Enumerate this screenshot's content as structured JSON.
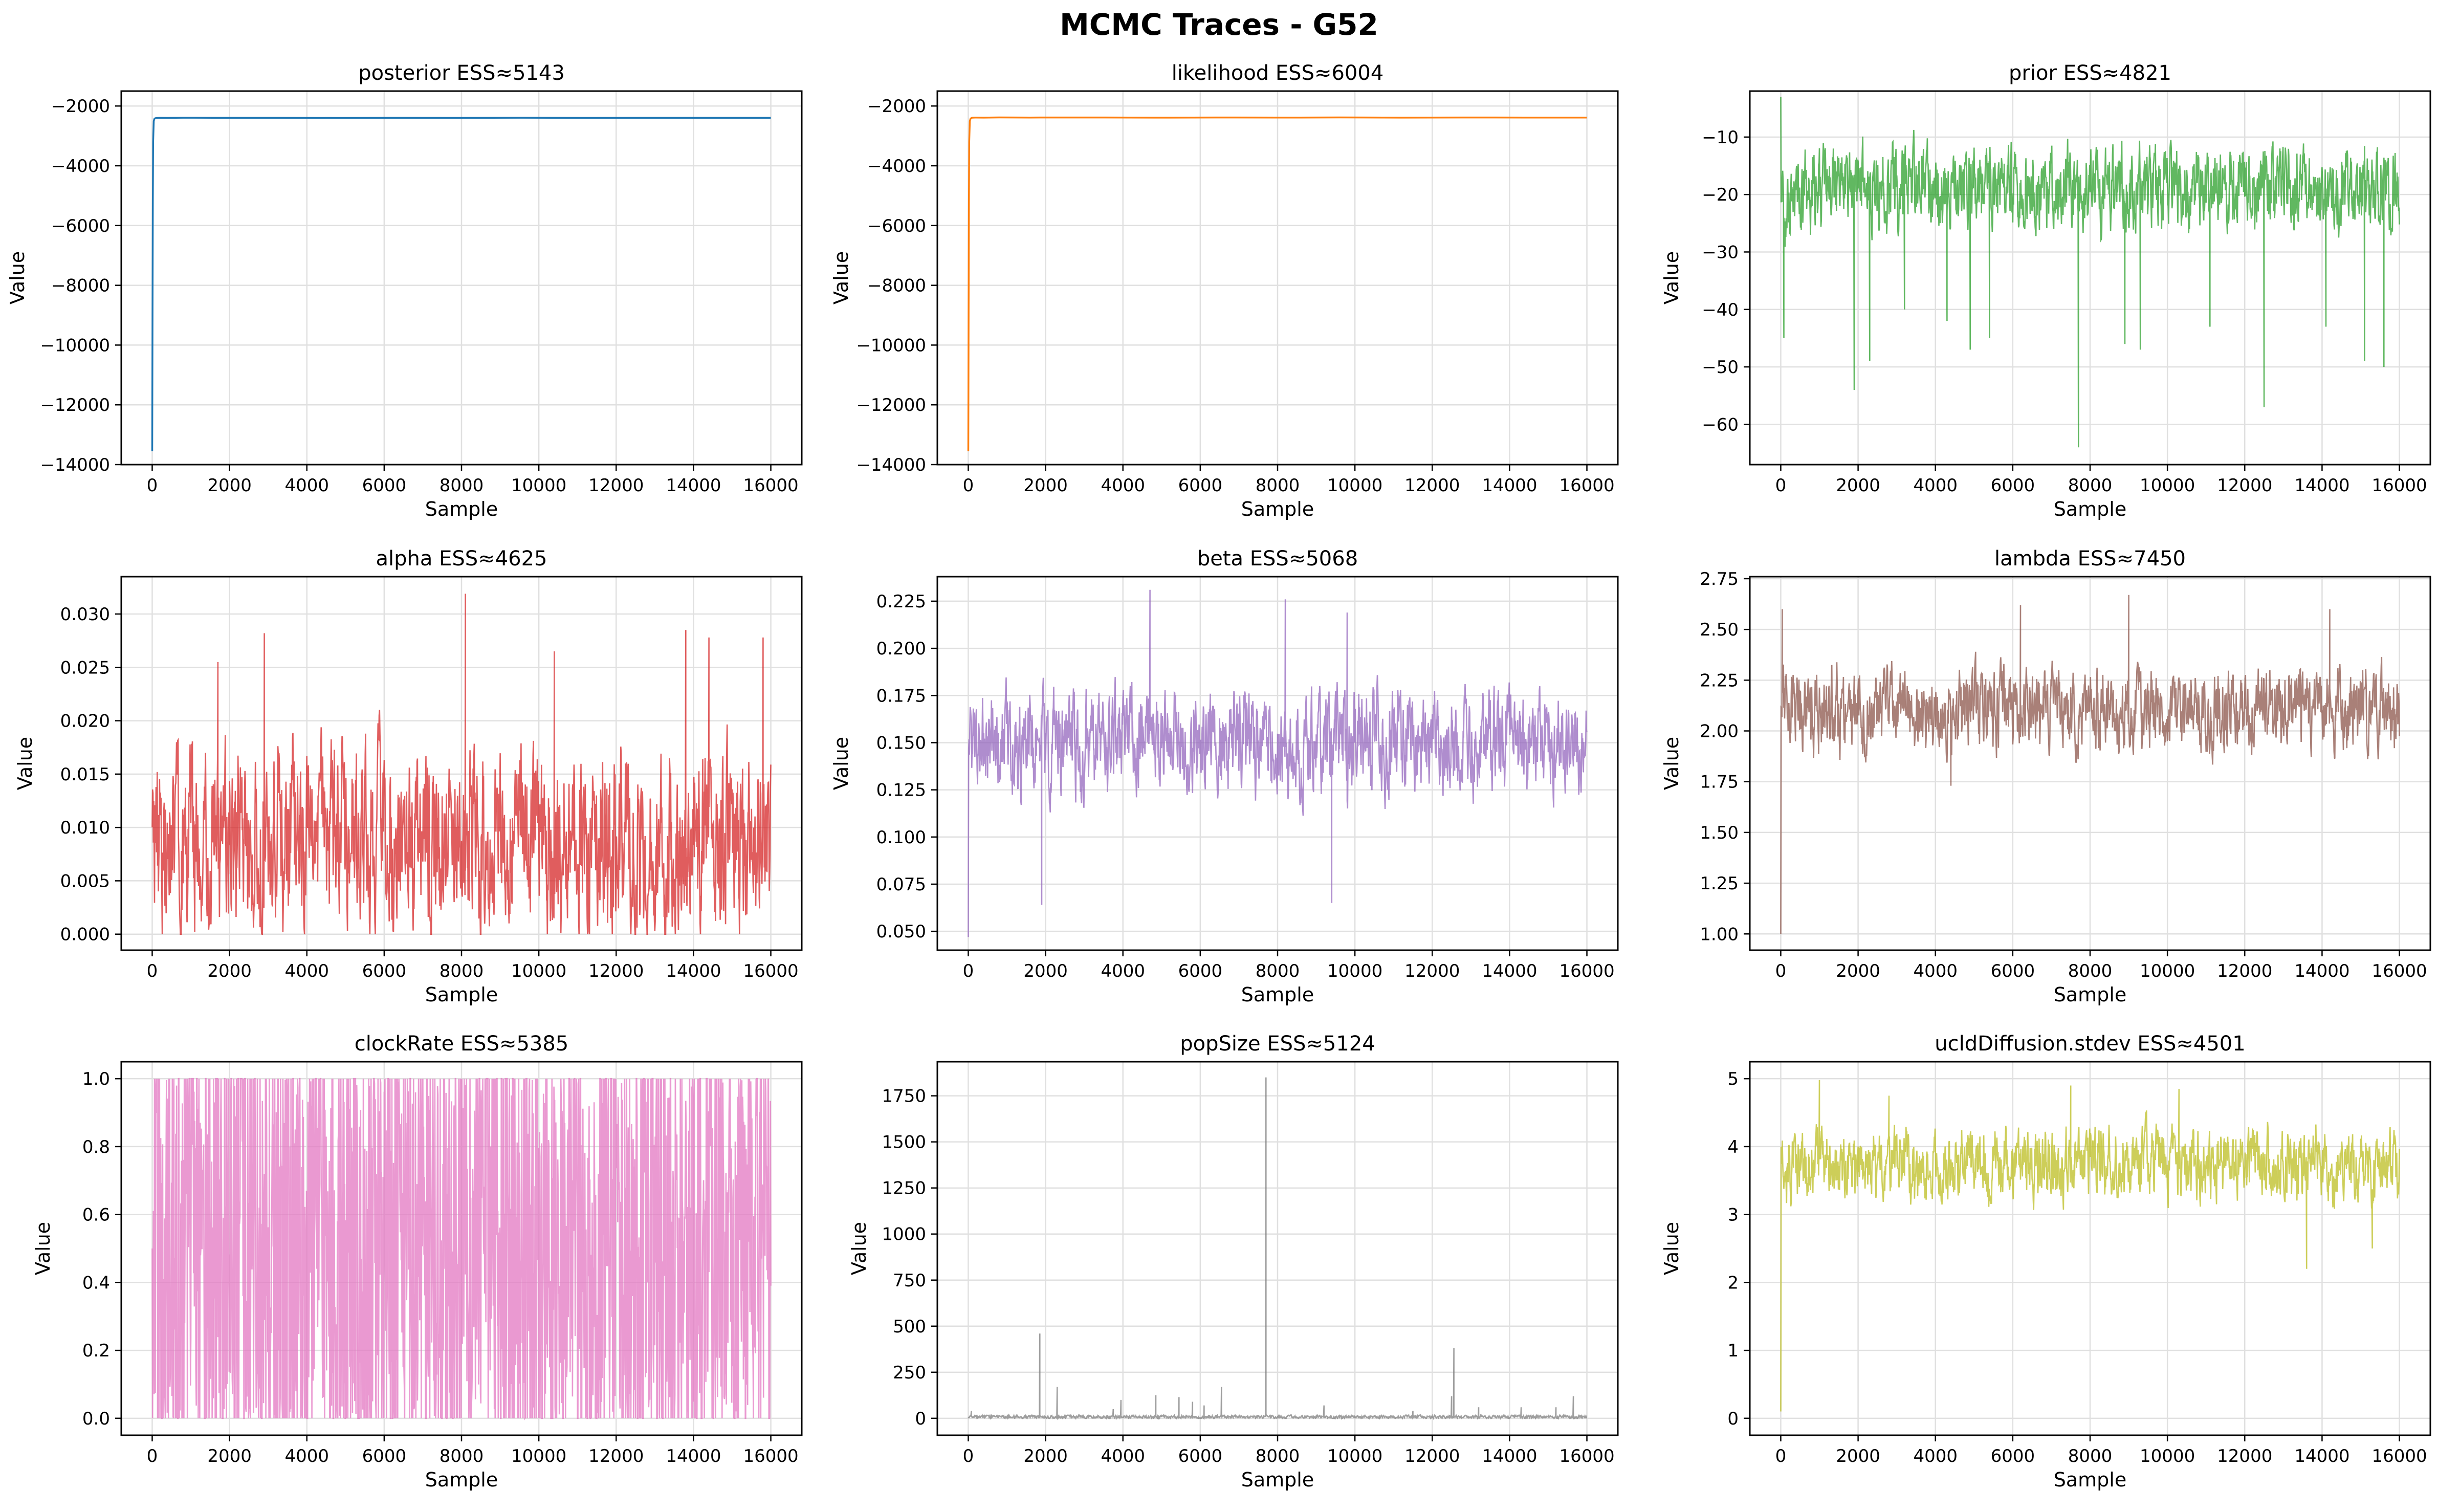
{
  "title": "MCMC Traces - G52",
  "chart_data": [
    {
      "type": "line",
      "title": "posterior ESS≈5143",
      "xlabel": "Sample",
      "ylabel": "Value",
      "color": "#1f77b4",
      "grid": true,
      "xlim": [
        -800,
        16800
      ],
      "ylim": [
        -14000,
        -1500
      ],
      "xticks": [
        0,
        2000,
        4000,
        6000,
        8000,
        10000,
        12000,
        14000,
        16000
      ],
      "yticks": [
        -14000,
        -12000,
        -10000,
        -8000,
        -6000,
        -4000,
        -2000
      ],
      "series": [
        {
          "x": [
            0,
            8,
            16,
            24,
            40,
            60,
            100,
            200,
            400,
            800,
            1600,
            3200,
            4800,
            6400,
            8000,
            9600,
            11200,
            12800,
            14400,
            16000
          ],
          "values": [
            -13550,
            -9000,
            -5200,
            -3200,
            -2500,
            -2420,
            -2400,
            -2395,
            -2398,
            -2392,
            -2396,
            -2394,
            -2399,
            -2393,
            -2397,
            -2392,
            -2398,
            -2394,
            -2396,
            -2395
          ]
        }
      ]
    },
    {
      "type": "line",
      "title": "likelihood ESS≈6004",
      "xlabel": "Sample",
      "ylabel": "Value",
      "color": "#ff7f0e",
      "grid": true,
      "xlim": [
        -800,
        16800
      ],
      "ylim": [
        -14000,
        -1500
      ],
      "xticks": [
        0,
        2000,
        4000,
        6000,
        8000,
        10000,
        12000,
        14000,
        16000
      ],
      "yticks": [
        -14000,
        -12000,
        -10000,
        -8000,
        -6000,
        -4000,
        -2000
      ],
      "series": [
        {
          "x": [
            0,
            8,
            16,
            24,
            40,
            60,
            100,
            200,
            400,
            800,
            1600,
            3200,
            4800,
            6400,
            8000,
            9600,
            11200,
            12800,
            14400,
            16000
          ],
          "values": [
            -13550,
            -9000,
            -5200,
            -3200,
            -2500,
            -2420,
            -2390,
            -2385,
            -2388,
            -2382,
            -2386,
            -2384,
            -2389,
            -2383,
            -2387,
            -2382,
            -2388,
            -2384,
            -2386,
            -2385
          ]
        }
      ]
    },
    {
      "type": "line",
      "title": "prior ESS≈4821",
      "xlabel": "Sample",
      "ylabel": "Value",
      "color": "#2ca02c",
      "grid": true,
      "xlim": [
        -800,
        16800
      ],
      "ylim": [
        -67,
        -2
      ],
      "xticks": [
        0,
        2000,
        4000,
        6000,
        8000,
        10000,
        12000,
        14000,
        16000
      ],
      "yticks": [
        -60,
        -50,
        -40,
        -30,
        -20,
        -10
      ],
      "trace": {
        "n": 1600,
        "seed": 3,
        "center": -19,
        "spread": 5.5,
        "min": -32,
        "max": -6,
        "low_tail": true,
        "start": -3
      },
      "spikes": [
        {
          "x": 80,
          "value": -45
        },
        {
          "x": 1900,
          "value": -54
        },
        {
          "x": 2300,
          "value": -49
        },
        {
          "x": 3200,
          "value": -40
        },
        {
          "x": 4300,
          "value": -42
        },
        {
          "x": 4900,
          "value": -47
        },
        {
          "x": 5400,
          "value": -45
        },
        {
          "x": 7700,
          "value": -64
        },
        {
          "x": 8900,
          "value": -46
        },
        {
          "x": 9300,
          "value": -47
        },
        {
          "x": 11100,
          "value": -43
        },
        {
          "x": 12500,
          "value": -57
        },
        {
          "x": 14100,
          "value": -43
        },
        {
          "x": 15100,
          "value": -49
        },
        {
          "x": 15600,
          "value": -50
        }
      ]
    },
    {
      "type": "line",
      "title": "alpha ESS≈4625",
      "xlabel": "Sample",
      "ylabel": "Value",
      "color": "#d62728",
      "grid": true,
      "xlim": [
        -800,
        16800
      ],
      "ylim": [
        -0.0015,
        0.0335
      ],
      "xticks": [
        0,
        2000,
        4000,
        6000,
        8000,
        10000,
        12000,
        14000,
        16000
      ],
      "yticks": [
        0,
        0.005,
        0.01,
        0.015,
        0.02,
        0.025,
        0.03
      ],
      "trace": {
        "n": 1600,
        "seed": 5,
        "center": 0.009,
        "spread": 0.0065,
        "min": 0,
        "max": 0.026,
        "low_tail": false,
        "start": 0.01
      },
      "spikes": [
        {
          "x": 1700,
          "value": 0.0255
        },
        {
          "x": 2900,
          "value": 0.0282
        },
        {
          "x": 8100,
          "value": 0.0319
        },
        {
          "x": 10400,
          "value": 0.0265
        },
        {
          "x": 13800,
          "value": 0.0285
        },
        {
          "x": 14400,
          "value": 0.0278
        },
        {
          "x": 15800,
          "value": 0.0278
        }
      ]
    },
    {
      "type": "line",
      "title": "beta ESS≈5068",
      "xlabel": "Sample",
      "ylabel": "Value",
      "color": "#9467bd",
      "grid": true,
      "xlim": [
        -800,
        16800
      ],
      "ylim": [
        0.04,
        0.238
      ],
      "xticks": [
        0,
        2000,
        4000,
        6000,
        8000,
        10000,
        12000,
        14000,
        16000
      ],
      "yticks": [
        0.05,
        0.075,
        0.1,
        0.125,
        0.15,
        0.175,
        0.2,
        0.225
      ],
      "trace": {
        "n": 1600,
        "seed": 7,
        "center": 0.15,
        "spread": 0.02,
        "min": 0.085,
        "max": 0.21,
        "low_tail": false,
        "start": 0.047
      },
      "spikes": [
        {
          "x": 1900,
          "value": 0.064
        },
        {
          "x": 4700,
          "value": 0.231
        },
        {
          "x": 8200,
          "value": 0.226
        },
        {
          "x": 9400,
          "value": 0.065
        },
        {
          "x": 9800,
          "value": 0.219
        }
      ]
    },
    {
      "type": "line",
      "title": "lambda ESS≈7450",
      "xlabel": "Sample",
      "ylabel": "Value",
      "color": "#8c564b",
      "grid": true,
      "xlim": [
        -800,
        16800
      ],
      "ylim": [
        0.92,
        2.76
      ],
      "xticks": [
        0,
        2000,
        4000,
        6000,
        8000,
        10000,
        12000,
        14000,
        16000
      ],
      "yticks": [
        1,
        1.25,
        1.5,
        1.75,
        2,
        2.25,
        2.5,
        2.75
      ],
      "trace": {
        "n": 1600,
        "seed": 11,
        "center": 2.1,
        "spread": 0.15,
        "min": 1.78,
        "max": 2.52,
        "low_tail": false,
        "start": 1.0
      },
      "spikes": [
        {
          "x": 40,
          "value": 2.6
        },
        {
          "x": 6200,
          "value": 2.62
        },
        {
          "x": 9000,
          "value": 2.67
        },
        {
          "x": 14200,
          "value": 2.6
        },
        {
          "x": 4400,
          "value": 1.73
        }
      ]
    },
    {
      "type": "line",
      "title": "clockRate ESS≈5385",
      "xlabel": "Sample",
      "ylabel": "Value",
      "color": "#e377c2",
      "grid": true,
      "xlim": [
        -800,
        16800
      ],
      "ylim": [
        -0.05,
        1.05
      ],
      "xticks": [
        0,
        2000,
        4000,
        6000,
        8000,
        10000,
        12000,
        14000,
        16000
      ],
      "yticks": [
        0,
        0.2,
        0.4,
        0.6,
        0.8,
        1
      ],
      "trace": {
        "n": 1600,
        "seed": 13,
        "center": 0.5,
        "spread": 0.35,
        "min": 0,
        "max": 1,
        "low_tail": false,
        "start": 0.5,
        "uniform": true
      }
    },
    {
      "type": "line",
      "title": "popSize ESS≈5124",
      "xlabel": "Sample",
      "ylabel": "Value",
      "color": "#7f7f7f",
      "grid": true,
      "xlim": [
        -800,
        16800
      ],
      "ylim": [
        -92,
        1935
      ],
      "xticks": [
        0,
        2000,
        4000,
        6000,
        8000,
        10000,
        12000,
        14000,
        16000
      ],
      "yticks": [
        0,
        250,
        500,
        750,
        1000,
        1250,
        1500,
        1750
      ],
      "trace": {
        "n": 1600,
        "seed": 17,
        "center": 8,
        "spread": 6,
        "min": 0,
        "max": 30,
        "low_tail": false,
        "start": 0
      },
      "spikes": [
        {
          "x": 80,
          "value": 40
        },
        {
          "x": 1850,
          "value": 460
        },
        {
          "x": 2300,
          "value": 170
        },
        {
          "x": 3750,
          "value": 50
        },
        {
          "x": 3950,
          "value": 100
        },
        {
          "x": 4850,
          "value": 125
        },
        {
          "x": 5450,
          "value": 115
        },
        {
          "x": 5800,
          "value": 90
        },
        {
          "x": 6100,
          "value": 70
        },
        {
          "x": 6550,
          "value": 170
        },
        {
          "x": 7700,
          "value": 1850
        },
        {
          "x": 9200,
          "value": 70
        },
        {
          "x": 11500,
          "value": 40
        },
        {
          "x": 12500,
          "value": 120
        },
        {
          "x": 12560,
          "value": 380
        },
        {
          "x": 13200,
          "value": 60
        },
        {
          "x": 14300,
          "value": 60
        },
        {
          "x": 15200,
          "value": 60
        },
        {
          "x": 15650,
          "value": 120
        }
      ]
    },
    {
      "type": "line",
      "title": "ucldDiffusion.stdev ESS≈4501",
      "xlabel": "Sample",
      "ylabel": "Value",
      "color": "#bcbd22",
      "grid": true,
      "xlim": [
        -800,
        16800
      ],
      "ylim": [
        -0.25,
        5.25
      ],
      "xticks": [
        0,
        2000,
        4000,
        6000,
        8000,
        10000,
        12000,
        14000,
        16000
      ],
      "yticks": [
        0,
        1,
        2,
        3,
        4,
        5
      ],
      "trace": {
        "n": 1600,
        "seed": 19,
        "center": 3.75,
        "spread": 0.4,
        "min": 2.8,
        "max": 4.7,
        "low_tail": false,
        "start": 0.1
      },
      "spikes": [
        {
          "x": 1000,
          "value": 4.98
        },
        {
          "x": 2800,
          "value": 4.75
        },
        {
          "x": 7500,
          "value": 4.9
        },
        {
          "x": 10300,
          "value": 4.85
        },
        {
          "x": 13600,
          "value": 2.2
        },
        {
          "x": 15300,
          "value": 2.5
        }
      ]
    }
  ]
}
